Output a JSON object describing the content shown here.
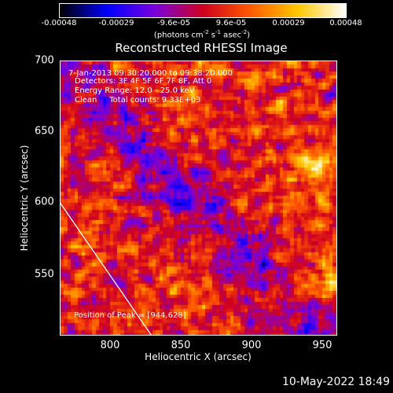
{
  "colorbar": {
    "ticks": [
      "-0.00048",
      "-0.00029",
      "-9.6e-05",
      "9.6e-05",
      "0.00029",
      "0.00048"
    ],
    "unit_label": "(photons cm",
    "unit_exp1": "-2",
    "unit_mid1": " s",
    "unit_exp2": "-1",
    "unit_mid2": " asec",
    "unit_exp3": "-2",
    "unit_end": ")"
  },
  "chart_data": {
    "type": "heatmap",
    "title": "Reconstructed RHESSI Image",
    "xlabel": "Heliocentric X (arcsec)",
    "ylabel": "Heliocentric Y (arcsec)",
    "xlim": [
      764,
      960
    ],
    "ylim": [
      505,
      702
    ],
    "xticks": [
      "800",
      "850",
      "900",
      "950"
    ],
    "yticks": [
      "550",
      "600",
      "650",
      "700"
    ],
    "zlim": [
      -0.00048,
      0.00048
    ],
    "colormap": [
      "#000000",
      "#0000ff",
      "#7a00dc",
      "#d00020",
      "#ff5a00",
      "#ffc800",
      "#ffffff"
    ],
    "peak": [
      944,
      628
    ],
    "annotations": [
      "7-Jan-2013 09:30:20.000 to 09:38:20.000",
      "Detectors: 3F 4F 5F 6F 7F 8F, Att 0",
      "Energy Range: 12.0 - 25.0 keV",
      "Clean     Total counts: 9.33E+03"
    ],
    "peak_label": "Position of Peak = [944,628]"
  },
  "timestamp": "10-May-2022 18:49"
}
